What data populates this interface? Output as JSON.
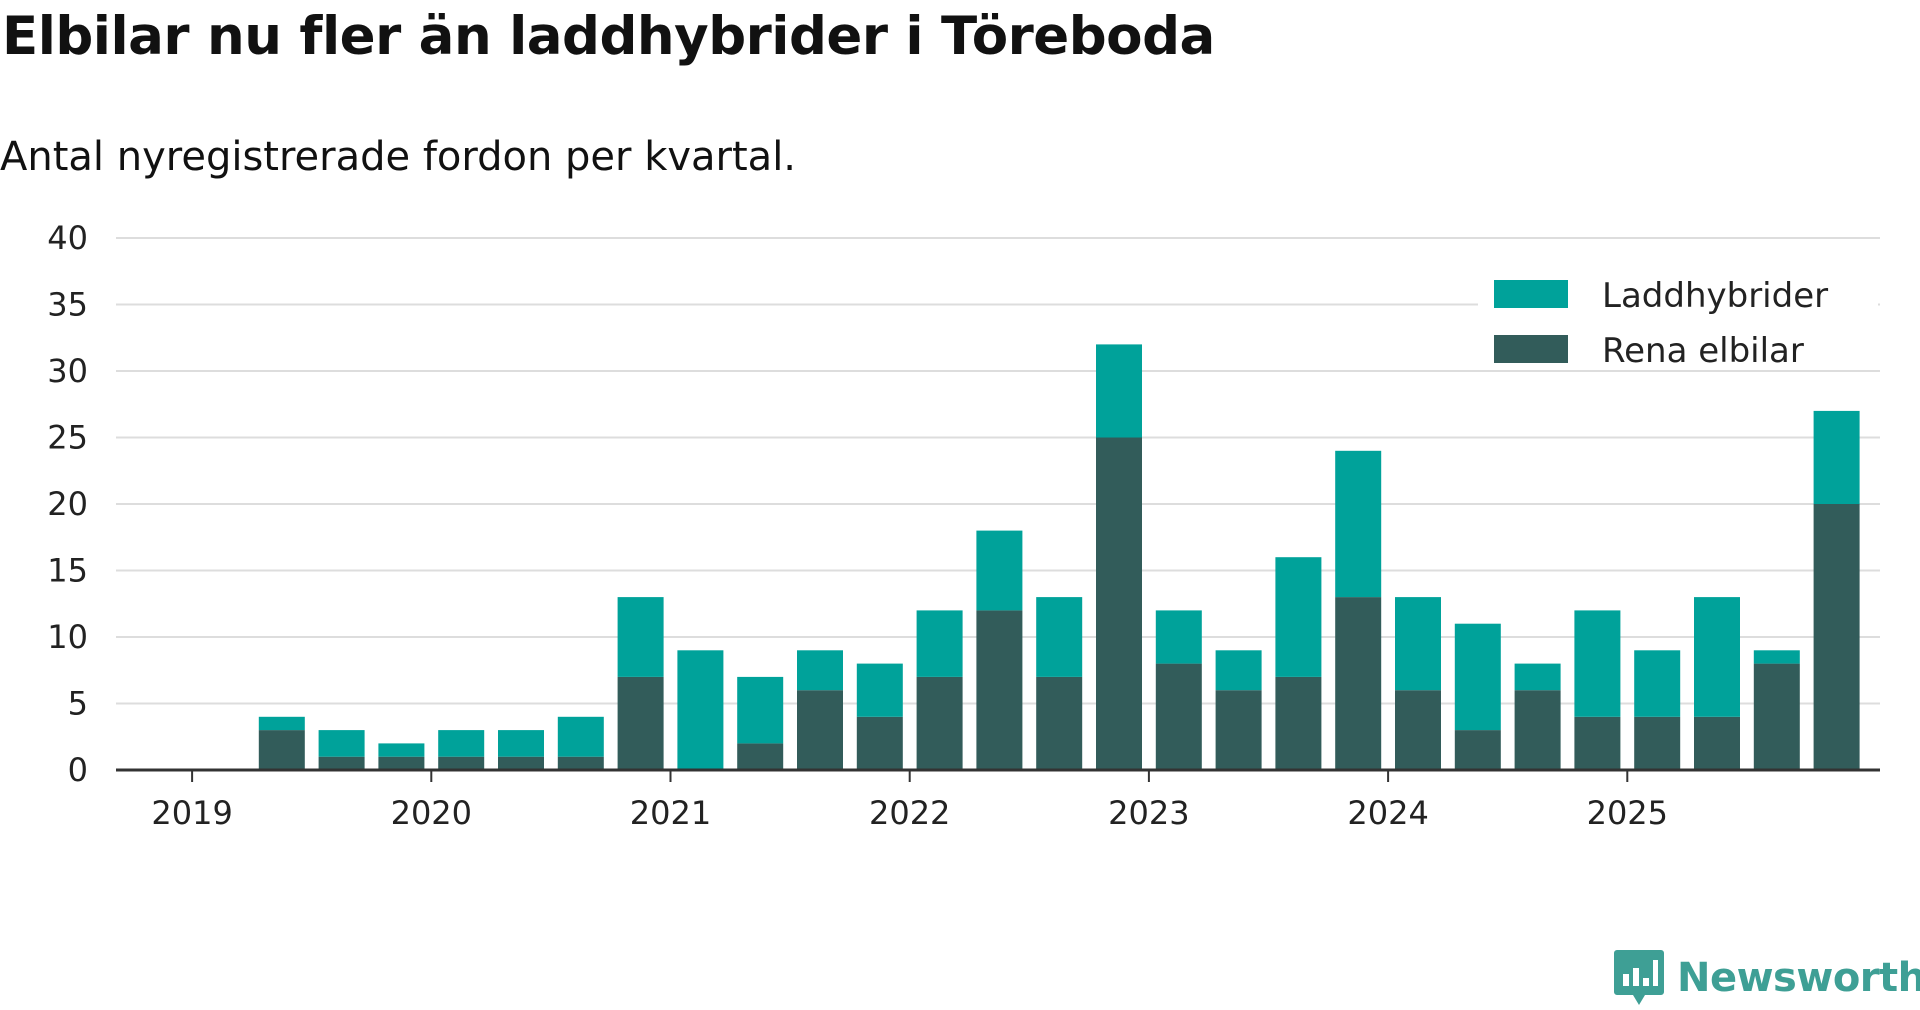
{
  "title": "Elbilar nu fler än laddhybrider i Töreboda",
  "subtitle": "Antal nyregistrerade fordon per kvartal.",
  "brand": {
    "name": "Newsworthy",
    "icon": "newsworthy-logo-icon"
  },
  "colors": {
    "laddhybrider": "#00a29a",
    "elbilar": "#325c5a",
    "grid": "#dddddd",
    "axis": "#333333",
    "text": "#222222"
  },
  "chart_data": {
    "type": "bar",
    "stacked": true,
    "title": "Elbilar nu fler än laddhybrider i Töreboda",
    "subtitle": "Antal nyregistrerade fordon per kvartal.",
    "xlabel": "",
    "ylabel": "",
    "ylim": [
      0,
      40
    ],
    "yticks": [
      0,
      5,
      10,
      15,
      20,
      25,
      30,
      35,
      40
    ],
    "x_tick_labels": [
      "2019",
      "2020",
      "2021",
      "2022",
      "2023",
      "2024",
      "2025"
    ],
    "legend_position": "top-right",
    "grid": true,
    "categories": [
      "2019Q1",
      "2019Q2",
      "2019Q3",
      "2019Q4",
      "2020Q1",
      "2020Q2",
      "2020Q3",
      "2020Q4",
      "2021Q1",
      "2021Q2",
      "2021Q3",
      "2021Q4",
      "2022Q1",
      "2022Q2",
      "2022Q3",
      "2022Q4",
      "2023Q1",
      "2023Q2",
      "2023Q3",
      "2023Q4",
      "2024Q1",
      "2024Q2",
      "2024Q3",
      "2024Q4",
      "2025Q1",
      "2025Q2",
      "2025Q3",
      "2025Q4"
    ],
    "series": [
      {
        "name": "Rena elbilar",
        "values": [
          0,
          3,
          1,
          1,
          1,
          1,
          1,
          7,
          0,
          2,
          6,
          4,
          7,
          12,
          7,
          25,
          8,
          6,
          7,
          13,
          6,
          3,
          6,
          4,
          4,
          4,
          8,
          20
        ]
      },
      {
        "name": "Laddhybrider",
        "values": [
          0,
          1,
          2,
          1,
          2,
          2,
          3,
          6,
          9,
          5,
          3,
          4,
          5,
          6,
          6,
          7,
          4,
          3,
          9,
          11,
          7,
          8,
          2,
          8,
          5,
          9,
          1,
          7
        ]
      }
    ]
  }
}
